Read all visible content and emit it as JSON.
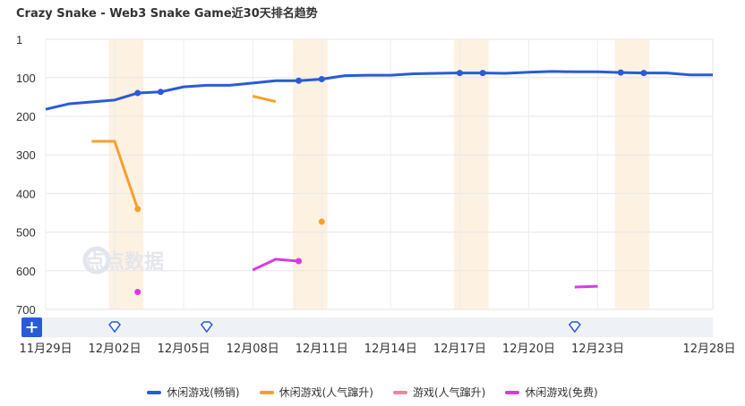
{
  "chart_data": {
    "type": "line",
    "title": "Crazy Snake - Web3 Snake Game近30天排名趋势",
    "watermark": "点点数据",
    "y_inverted": true,
    "ylim": [
      1,
      700
    ],
    "yticks": [
      1,
      100,
      200,
      300,
      400,
      500,
      600,
      700
    ],
    "x_dates": [
      "11-29",
      "11-30",
      "12-01",
      "12-02",
      "12-03",
      "12-04",
      "12-05",
      "12-06",
      "12-07",
      "12-08",
      "12-09",
      "12-10",
      "12-11",
      "12-12",
      "12-13",
      "12-14",
      "12-15",
      "12-16",
      "12-17",
      "12-18",
      "12-19",
      "12-20",
      "12-21",
      "12-22",
      "12-23",
      "12-24",
      "12-25",
      "12-26",
      "12-27",
      "12-28"
    ],
    "xtick_labels": [
      "11月29日",
      "12月02日",
      "12月05日",
      "12月08日",
      "12月11日",
      "12月14日",
      "12月17日",
      "12月20日",
      "12月23日",
      "12月28日"
    ],
    "xtick_dates": [
      "11-29",
      "12-02",
      "12-05",
      "12-08",
      "12-11",
      "12-14",
      "12-17",
      "12-20",
      "12-23",
      "12-28"
    ],
    "highlight_ranges": [
      [
        "12-02",
        "12-03"
      ],
      [
        "12-10",
        "12-11"
      ],
      [
        "12-17",
        "12-18"
      ],
      [
        "12-24",
        "12-25"
      ]
    ],
    "series": [
      {
        "name": "休闲游戏(畅销)",
        "color": "#2a5bd7",
        "values": [
          182,
          168,
          163,
          158,
          140,
          137,
          124,
          120,
          120,
          114,
          108,
          108,
          104,
          95,
          94,
          94,
          90,
          89,
          88,
          88,
          89,
          86,
          84,
          85,
          85,
          87,
          88,
          88,
          93,
          93
        ],
        "markers": [
          "12-03",
          "12-04",
          "12-10",
          "12-11",
          "12-17",
          "12-18",
          "12-24",
          "12-25"
        ]
      },
      {
        "name": "休闲游戏(人气蹿升)",
        "color": "#f7a02b",
        "segments": [
          [
            [
              "12-01",
              265
            ],
            [
              "12-02",
              265
            ],
            [
              "12-03",
              440
            ]
          ],
          [
            [
              "12-08",
              148
            ],
            [
              "12-09",
              162
            ]
          ]
        ],
        "points": [
          [
            "12-11",
            473
          ]
        ],
        "markers": [
          "12-03",
          "12-11"
        ]
      },
      {
        "name": "游戏(人气蹿升)",
        "color": "#f2849e",
        "segments": [],
        "points": []
      },
      {
        "name": "休闲游戏(免费)",
        "color": "#d83be0",
        "segments": [
          [
            [
              "12-08",
              598
            ],
            [
              "12-09",
              570
            ],
            [
              "12-10",
              575
            ]
          ],
          [
            [
              "12-22",
              642
            ],
            [
              "12-23",
              640
            ]
          ]
        ],
        "points": [
          [
            "12-03",
            655
          ]
        ],
        "markers": [
          "12-03",
          "12-10"
        ]
      }
    ],
    "slider_icons": [
      "12-02",
      "12-06",
      "12-22"
    ]
  }
}
